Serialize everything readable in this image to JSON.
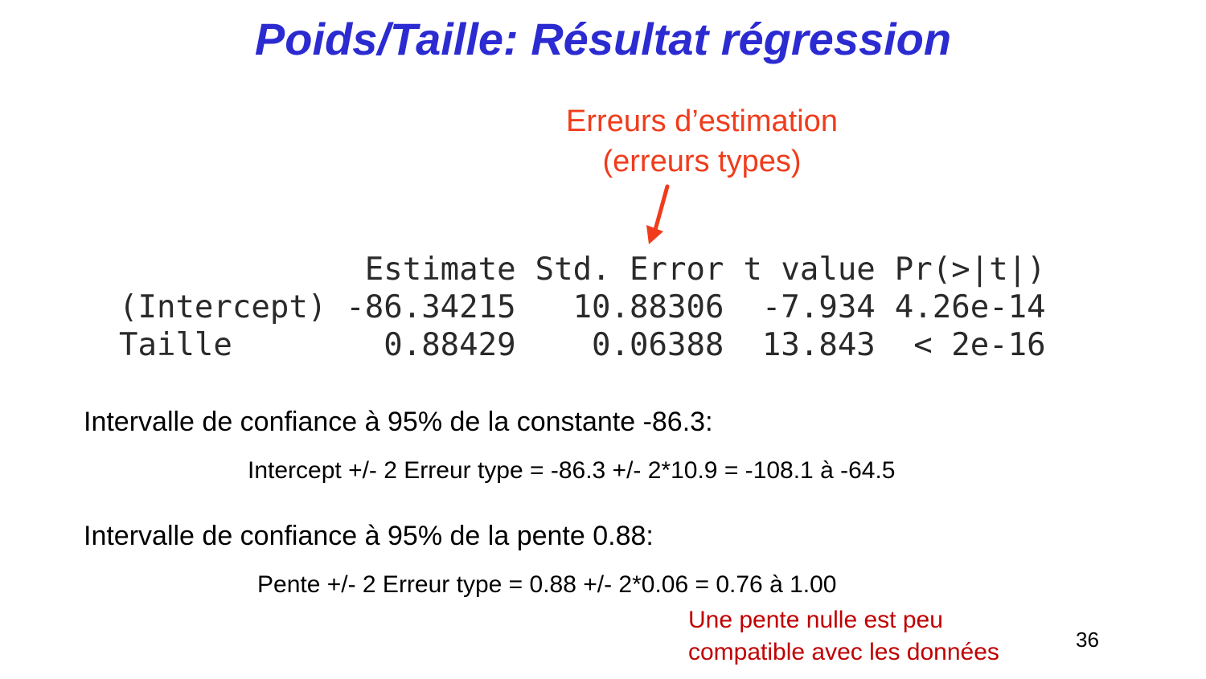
{
  "slide": {
    "title": "Poids/Taille: Résultat régression",
    "annotation": {
      "line1": "Erreurs d’estimation",
      "line2": "(erreurs types)",
      "color": "#f03c1c"
    },
    "regression_table": {
      "headers": [
        "Estimate",
        "Std. Error",
        "t value",
        "Pr(>|t|)"
      ],
      "rows": [
        {
          "label": "(Intercept)",
          "estimate": "-86.34215",
          "std_error": "10.88306",
          "t_value": "-7.934",
          "p_value": "4.26e-14"
        },
        {
          "label": "Taille",
          "estimate": "0.88429",
          "std_error": "0.06388",
          "t_value": "13.843",
          "p_value": "< 2e-16"
        }
      ]
    },
    "ci_constant": {
      "heading": "Intervalle de confiance à 95% de la constante -86.3:",
      "formula": "Intercept +/- 2 Erreur type = -86.3 +/- 2*10.9 = -108.1 à -64.5"
    },
    "ci_slope": {
      "heading": "Intervalle de confiance à 95% de la pente 0.88:",
      "formula": "Pente +/- 2 Erreur type = 0.88 +/- 2*0.06 = 0.76 à 1.00"
    },
    "conclusion": {
      "line1": "Une pente nulle est peu",
      "line2": "compatible avec les données",
      "color": "#c00000"
    },
    "page_number": "36",
    "title_color": "#2b2bd1"
  }
}
